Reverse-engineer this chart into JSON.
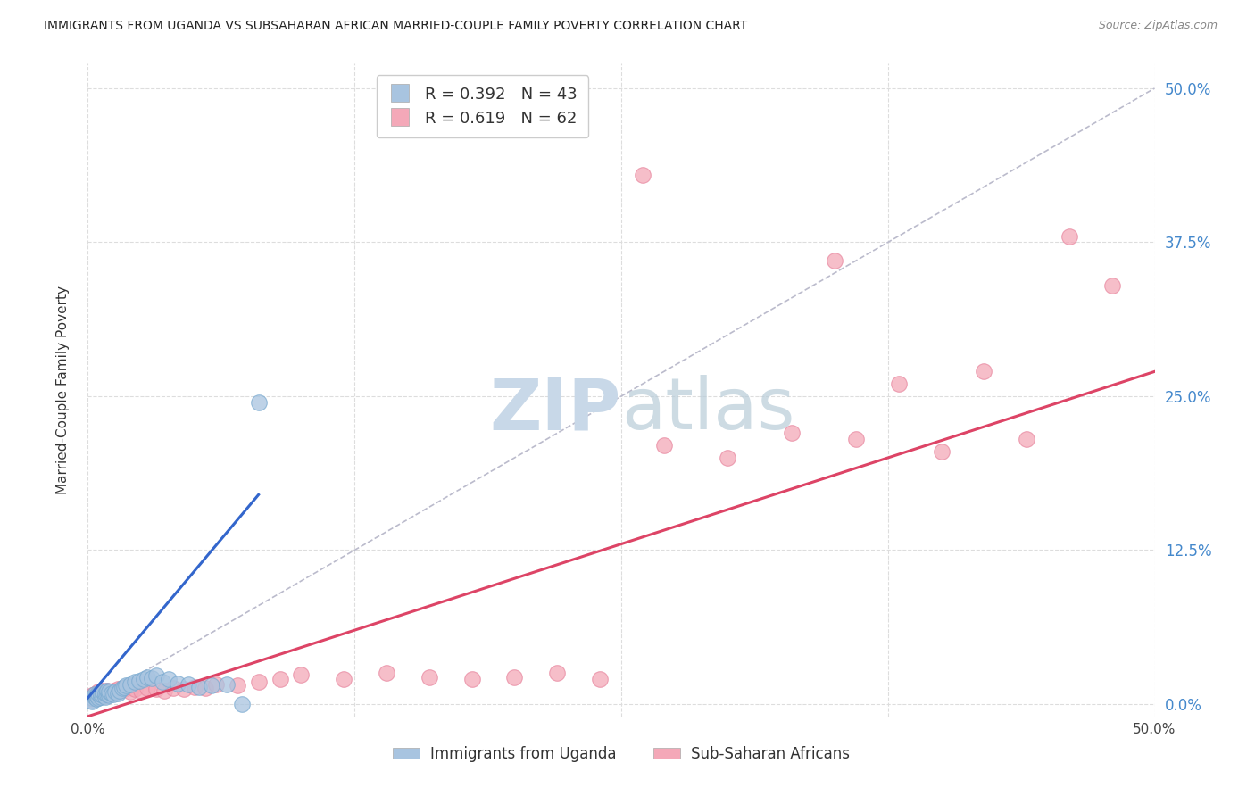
{
  "title": "IMMIGRANTS FROM UGANDA VS SUBSAHARAN AFRICAN MARRIED-COUPLE FAMILY POVERTY CORRELATION CHART",
  "source": "Source: ZipAtlas.com",
  "ylabel": "Married-Couple Family Poverty",
  "xlim": [
    0.0,
    0.5
  ],
  "ylim": [
    -0.01,
    0.52
  ],
  "plot_ylim": [
    0.0,
    0.52
  ],
  "xtick_vals": [
    0.0,
    0.125,
    0.25,
    0.375,
    0.5
  ],
  "xtick_labels": [
    "0.0%",
    "",
    "",
    "",
    "50.0%"
  ],
  "ytick_vals": [
    0.0,
    0.125,
    0.25,
    0.375,
    0.5
  ],
  "right_ytick_labels": [
    "0.0%",
    "12.5%",
    "25.0%",
    "37.5%",
    "50.0%"
  ],
  "legend_label_blue": "Immigrants from Uganda",
  "legend_label_pink": "Sub-Saharan Africans",
  "blue_color": "#a8c4e0",
  "blue_edge_color": "#7aaad0",
  "pink_color": "#f4a8b8",
  "pink_edge_color": "#e888a0",
  "blue_line_color": "#3366cc",
  "pink_line_color": "#dd4466",
  "diagonal_color": "#bbbbcc",
  "watermark_zip_color": "#c8d8e8",
  "watermark_atlas_color": "#b8ccd8",
  "background_color": "#ffffff",
  "grid_color": "#dddddd",
  "right_axis_color": "#4488cc",
  "title_color": "#222222",
  "source_color": "#888888",
  "blue_scatter_x": [
    0.001,
    0.002,
    0.002,
    0.003,
    0.003,
    0.004,
    0.004,
    0.005,
    0.005,
    0.006,
    0.006,
    0.007,
    0.007,
    0.008,
    0.008,
    0.009,
    0.009,
    0.01,
    0.01,
    0.011,
    0.012,
    0.013,
    0.014,
    0.015,
    0.016,
    0.017,
    0.018,
    0.02,
    0.022,
    0.024,
    0.026,
    0.028,
    0.03,
    0.032,
    0.035,
    0.038,
    0.042,
    0.047,
    0.052,
    0.058,
    0.065,
    0.072,
    0.08
  ],
  "blue_scatter_y": [
    0.003,
    0.005,
    0.002,
    0.006,
    0.008,
    0.004,
    0.007,
    0.005,
    0.009,
    0.006,
    0.008,
    0.007,
    0.01,
    0.006,
    0.009,
    0.008,
    0.011,
    0.007,
    0.01,
    0.009,
    0.008,
    0.01,
    0.009,
    0.011,
    0.013,
    0.014,
    0.015,
    0.016,
    0.018,
    0.019,
    0.02,
    0.022,
    0.021,
    0.023,
    0.018,
    0.02,
    0.017,
    0.016,
    0.014,
    0.015,
    0.016,
    0.0,
    0.245
  ],
  "pink_scatter_x": [
    0.001,
    0.001,
    0.002,
    0.002,
    0.003,
    0.003,
    0.004,
    0.004,
    0.005,
    0.005,
    0.006,
    0.006,
    0.007,
    0.007,
    0.008,
    0.008,
    0.009,
    0.009,
    0.01,
    0.01,
    0.011,
    0.012,
    0.013,
    0.014,
    0.015,
    0.016,
    0.017,
    0.018,
    0.02,
    0.022,
    0.025,
    0.028,
    0.032,
    0.036,
    0.04,
    0.045,
    0.05,
    0.055,
    0.06,
    0.07,
    0.08,
    0.09,
    0.1,
    0.12,
    0.14,
    0.16,
    0.18,
    0.2,
    0.22,
    0.24,
    0.27,
    0.3,
    0.33,
    0.36,
    0.38,
    0.4,
    0.42,
    0.44,
    0.46,
    0.48,
    0.26,
    0.35
  ],
  "pink_scatter_y": [
    0.004,
    0.006,
    0.005,
    0.007,
    0.006,
    0.008,
    0.005,
    0.009,
    0.007,
    0.01,
    0.008,
    0.01,
    0.009,
    0.011,
    0.007,
    0.01,
    0.009,
    0.011,
    0.008,
    0.01,
    0.009,
    0.011,
    0.01,
    0.012,
    0.011,
    0.013,
    0.012,
    0.014,
    0.01,
    0.012,
    0.011,
    0.013,
    0.012,
    0.011,
    0.013,
    0.012,
    0.014,
    0.013,
    0.016,
    0.015,
    0.018,
    0.02,
    0.024,
    0.02,
    0.025,
    0.022,
    0.02,
    0.022,
    0.025,
    0.02,
    0.21,
    0.2,
    0.22,
    0.215,
    0.26,
    0.205,
    0.27,
    0.215,
    0.38,
    0.34,
    0.43,
    0.36
  ],
  "blue_trend": [
    0.0,
    0.08,
    0.005,
    0.17
  ],
  "pink_trend": [
    0.0,
    0.5,
    -0.01,
    0.27
  ],
  "diagonal": [
    0.0,
    0.5
  ]
}
